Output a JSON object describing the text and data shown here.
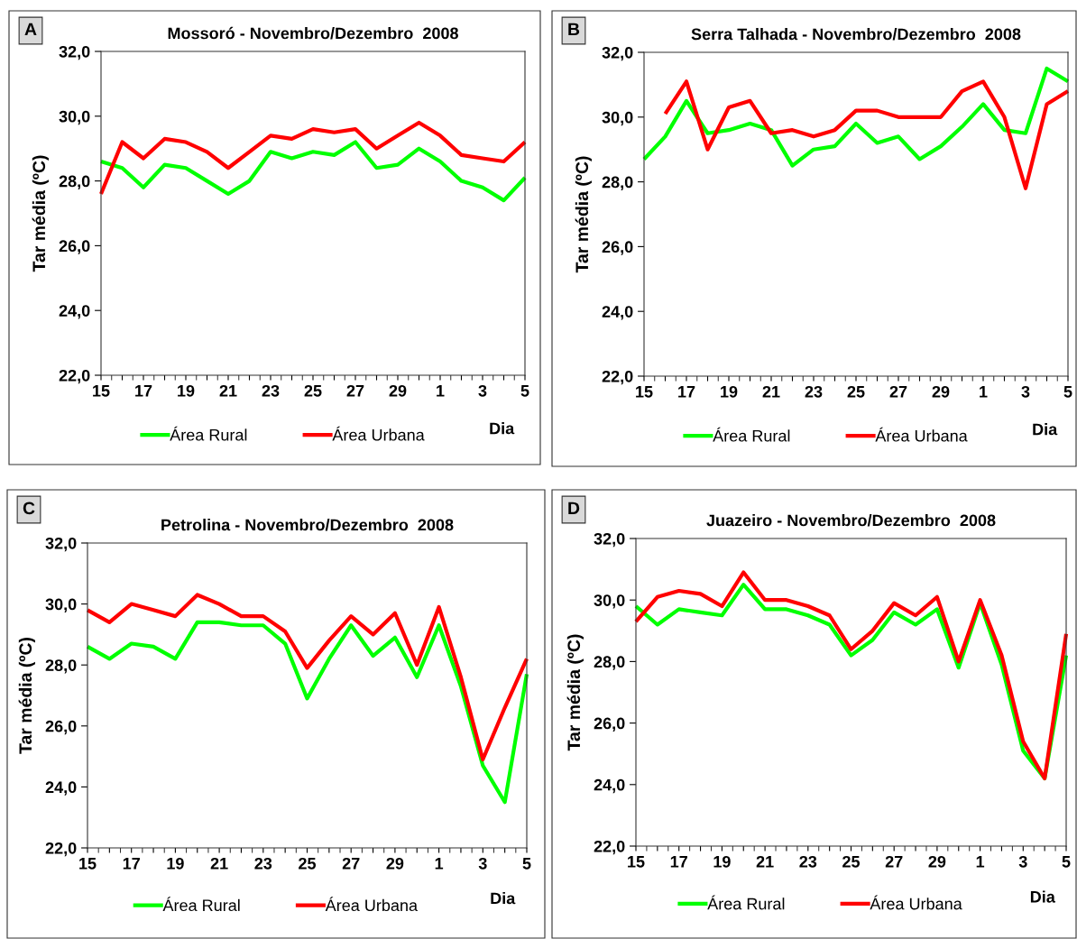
{
  "chart_data": [
    {
      "type": "line",
      "title": "Mossoró - Novembro/Dezembro  2008",
      "xlabel": "Dia",
      "ylabel": "Tar média (ºC)",
      "annotations": [
        "A"
      ],
      "categories": [
        "15",
        null,
        "17",
        null,
        "19",
        null,
        "21",
        null,
        "23",
        null,
        "25",
        null,
        "27",
        null,
        "29",
        null,
        "1",
        null,
        "3",
        null,
        "5"
      ],
      "series": [
        {
          "name": "Área Rural",
          "color": "#00ff00",
          "values": [
            28.6,
            28.4,
            27.8,
            28.5,
            28.4,
            28.0,
            27.6,
            28.0,
            28.9,
            28.7,
            28.9,
            28.8,
            29.2,
            28.4,
            28.5,
            29.0,
            28.6,
            28.0,
            27.8,
            27.4,
            28.1
          ]
        },
        {
          "name": "Área Urbana",
          "color": "#ff0000",
          "values": [
            27.6,
            29.2,
            28.7,
            29.3,
            29.2,
            28.9,
            28.4,
            28.9,
            29.4,
            29.3,
            29.6,
            29.5,
            29.6,
            29.0,
            29.4,
            29.8,
            29.4,
            28.8,
            28.7,
            28.6,
            29.2
          ]
        }
      ],
      "ylim": [
        22,
        32
      ],
      "yticks": [
        {
          "value": 22,
          "label": "22,0"
        },
        {
          "value": 24,
          "label": "24,0"
        },
        {
          "value": 26,
          "label": "26,0"
        },
        {
          "value": 28,
          "label": "28,0"
        },
        {
          "value": 30,
          "label": "30,0"
        },
        {
          "value": 32,
          "label": "32,0"
        }
      ],
      "grid": false,
      "legend": "bottom",
      "marker": "none",
      "line_style": "solid"
    },
    {
      "type": "line",
      "title": "Serra Talhada - Novembro/Dezembro  2008",
      "xlabel": "Dia",
      "ylabel": "Tar média (ºC)",
      "annotations": [
        "B"
      ],
      "categories": [
        "15",
        null,
        "17",
        null,
        "19",
        null,
        "21",
        null,
        "23",
        null,
        "25",
        null,
        "27",
        null,
        "29",
        null,
        "1",
        null,
        "3",
        null,
        "5"
      ],
      "series": [
        {
          "name": "Área Rural",
          "color": "#00ff00",
          "values": [
            28.7,
            29.4,
            30.5,
            29.5,
            29.6,
            29.8,
            29.6,
            28.5,
            29.0,
            29.1,
            29.8,
            29.2,
            29.4,
            28.7,
            29.1,
            29.7,
            30.4,
            29.6,
            29.5,
            31.5,
            31.1
          ]
        },
        {
          "name": "Área Urbana",
          "color": "#ff0000",
          "values": [
            null,
            30.1,
            31.1,
            29.0,
            30.3,
            30.5,
            29.5,
            29.6,
            29.4,
            29.6,
            30.2,
            30.2,
            30.0,
            30.0,
            30.0,
            30.8,
            31.1,
            30.0,
            27.8,
            30.4,
            30.8
          ]
        }
      ],
      "ylim": [
        22,
        32
      ],
      "yticks": [
        {
          "value": 22,
          "label": "22,0"
        },
        {
          "value": 24,
          "label": "24,0"
        },
        {
          "value": 26,
          "label": "26,0"
        },
        {
          "value": 28,
          "label": "28,0"
        },
        {
          "value": 30,
          "label": "30,0"
        },
        {
          "value": 32,
          "label": "32,0"
        }
      ],
      "grid": false,
      "legend": "bottom",
      "marker": "none",
      "line_style": "solid"
    },
    {
      "type": "line",
      "title": "Petrolina - Novembro/Dezembro  2008",
      "xlabel": "Dia",
      "ylabel": "Tar média (ºC)",
      "annotations": [
        "C"
      ],
      "categories": [
        "15",
        null,
        "17",
        null,
        "19",
        null,
        "21",
        null,
        "23",
        null,
        "25",
        null,
        "27",
        null,
        "29",
        null,
        "1",
        null,
        "3",
        null,
        "5"
      ],
      "series": [
        {
          "name": "Área Rural",
          "color": "#00ff00",
          "values": [
            28.6,
            28.2,
            28.7,
            28.6,
            28.2,
            29.4,
            29.4,
            29.3,
            29.3,
            28.7,
            26.9,
            28.2,
            29.3,
            28.3,
            28.9,
            27.6,
            29.3,
            27.3,
            24.7,
            23.5,
            27.7
          ]
        },
        {
          "name": "Área Urbana",
          "color": "#ff0000",
          "values": [
            29.8,
            29.4,
            30.0,
            29.8,
            29.6,
            30.3,
            30.0,
            29.6,
            29.6,
            29.1,
            27.9,
            28.8,
            29.6,
            29.0,
            29.7,
            28.0,
            29.9,
            27.6,
            24.9,
            26.6,
            28.2
          ]
        }
      ],
      "ylim": [
        22,
        32
      ],
      "yticks": [
        {
          "value": 22,
          "label": "22,0"
        },
        {
          "value": 24,
          "label": "24,0"
        },
        {
          "value": 26,
          "label": "26,0"
        },
        {
          "value": 28,
          "label": "28,0"
        },
        {
          "value": 30,
          "label": "30,0"
        },
        {
          "value": 32,
          "label": "32,0"
        }
      ],
      "grid": false,
      "legend": "bottom",
      "marker": "none",
      "line_style": "solid"
    },
    {
      "type": "line",
      "title": "Juazeiro - Novembro/Dezembro  2008",
      "xlabel": "Dia",
      "ylabel": "Tar média (ºC)",
      "annotations": [
        "D"
      ],
      "categories": [
        "15",
        null,
        "17",
        null,
        "19",
        null,
        "21",
        null,
        "23",
        null,
        "25",
        null,
        "27",
        null,
        "29",
        null,
        "1",
        null,
        "3",
        null,
        "5"
      ],
      "series": [
        {
          "name": "Área Rural",
          "color": "#00ff00",
          "values": [
            29.8,
            29.2,
            29.7,
            29.6,
            29.5,
            30.5,
            29.7,
            29.7,
            29.5,
            29.2,
            28.2,
            28.7,
            29.6,
            29.2,
            29.7,
            27.8,
            29.9,
            27.9,
            25.1,
            24.2,
            28.2
          ]
        },
        {
          "name": "Área Urbana",
          "color": "#ff0000",
          "values": [
            29.3,
            30.1,
            30.3,
            30.2,
            29.8,
            30.9,
            30.0,
            30.0,
            29.8,
            29.5,
            28.4,
            29.0,
            29.9,
            29.5,
            30.1,
            28.0,
            30.0,
            28.2,
            25.4,
            24.2,
            28.9
          ]
        }
      ],
      "ylim": [
        22,
        32
      ],
      "yticks": [
        {
          "value": 22,
          "label": "22,0"
        },
        {
          "value": 24,
          "label": "24,0"
        },
        {
          "value": 26,
          "label": "26,0"
        },
        {
          "value": 28,
          "label": "28,0"
        },
        {
          "value": 30,
          "label": "30,0"
        },
        {
          "value": 32,
          "label": "32,0"
        }
      ],
      "grid": false,
      "legend": "bottom",
      "marker": "none",
      "line_style": "solid"
    }
  ]
}
